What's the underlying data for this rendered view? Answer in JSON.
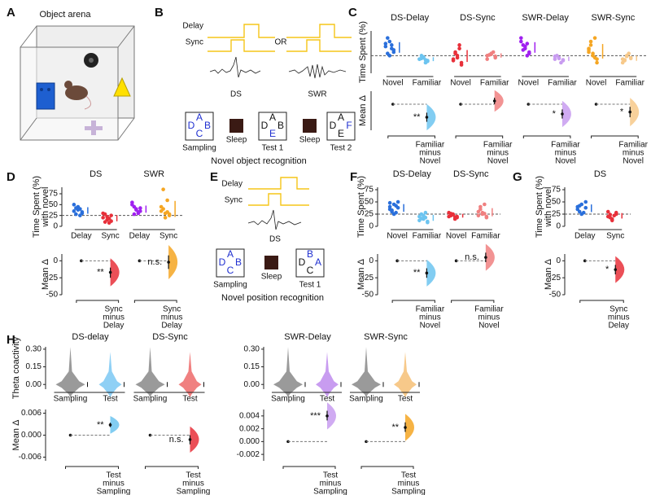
{
  "figure": {
    "panel_labels": [
      "A",
      "B",
      "C",
      "D",
      "E",
      "F",
      "G",
      "H"
    ],
    "a_title": "Object arena",
    "b": {
      "delay": "Delay",
      "sync": "Sync",
      "or": "OR",
      "ds": "DS",
      "swr": "SWR",
      "sleep": "Sleep",
      "caption": "Novel object recognition",
      "boxes": [
        {
          "label": "Sampling",
          "letters": [
            {
              "text": "A",
              "color": "#1f2fd0"
            },
            {
              "text": "D",
              "color": "#1f2fd0"
            },
            {
              "text": "B",
              "color": "#1f2fd0"
            },
            {
              "text": "C",
              "color": "#1f2fd0"
            }
          ]
        },
        {
          "label": "Test 1",
          "letters": [
            {
              "text": "A",
              "color": "#111111"
            },
            {
              "text": "D",
              "color": "#111111"
            },
            {
              "text": "B",
              "color": "#111111"
            },
            {
              "text": "E",
              "color": "#1f2fd0"
            }
          ]
        },
        {
          "label": "Test 2",
          "letters": [
            {
              "text": "A",
              "color": "#111111"
            },
            {
              "text": "D",
              "color": "#111111"
            },
            {
              "text": "F",
              "color": "#1f2fd0"
            },
            {
              "text": "E",
              "color": "#111111"
            }
          ]
        }
      ]
    },
    "e": {
      "delay": "Delay",
      "sync": "Sync",
      "ds": "DS",
      "sleep": "Sleep",
      "caption": "Novel position recognition",
      "boxes": [
        {
          "label": "Sampling",
          "letters": [
            {
              "text": "A",
              "color": "#1f2fd0"
            },
            {
              "text": "D",
              "color": "#1f2fd0"
            },
            {
              "text": "B",
              "color": "#1f2fd0"
            },
            {
              "text": "C",
              "color": "#1f2fd0"
            }
          ]
        },
        {
          "label": "Test 1",
          "letters": [
            {
              "text": "B",
              "color": "#1f2fd0"
            },
            {
              "text": "D",
              "color": "#111111"
            },
            {
              "text": "A",
              "color": "#1f2fd0"
            },
            {
              "text": "C",
              "color": "#111111"
            }
          ]
        }
      ]
    }
  },
  "chart_data": [
    {
      "type": "strip",
      "ylabel": [
        "Time Spent (%)"
      ],
      "ylim": [
        0,
        60
      ],
      "reference": 25,
      "groups": [
        {
          "title": "DS-Delay",
          "categories": [
            "Novel",
            "Familiar"
          ],
          "series": [
            {
              "color": "#2a6fdb",
              "values": [
                38,
                45,
                30,
                28,
                35,
                42,
                25,
                33,
                50,
                40
              ]
            },
            {
              "color": "#6cc4f0",
              "values": [
                20,
                22,
                18,
                25,
                15,
                20,
                23,
                17,
                21,
                19
              ]
            }
          ]
        },
        {
          "title": "DS-Sync",
          "categories": [
            "Novel",
            "Familiar"
          ],
          "series": [
            {
              "color": "#e8303a",
              "values": [
                20,
                25,
                15,
                30,
                35,
                18,
                22,
                12,
                28,
                40
              ]
            },
            {
              "color": "#f08080",
              "values": [
                25,
                28,
                22,
                26,
                30,
                20,
                27,
                24
              ]
            }
          ]
        },
        {
          "title": "SWR-Delay",
          "categories": [
            "Novel",
            "Familiar"
          ],
          "series": [
            {
              "color": "#a020f0",
              "values": [
                45,
                35,
                30,
                40,
                25,
                50,
                38,
                28,
                33,
                42
              ]
            },
            {
              "color": "#c89cf0",
              "values": [
                20,
                22,
                18,
                25,
                15,
                24,
                21,
                19
              ]
            }
          ]
        },
        {
          "title": "SWR-Sync",
          "categories": [
            "Novel",
            "Familiar"
          ],
          "series": [
            {
              "color": "#f5a623",
              "values": [
                30,
                25,
                20,
                45,
                50,
                35,
                28,
                15,
                40,
                22,
                33
              ]
            },
            {
              "color": "#f7c98a",
              "values": [
                20,
                25,
                22,
                18,
                28,
                15,
                24,
                21,
                19
              ]
            }
          ]
        }
      ]
    },
    {
      "type": "estimation",
      "ylabel": [
        "Mean Δ"
      ],
      "ylim": [
        -40,
        20
      ],
      "groups": [
        {
          "labels": [
            "Familiar",
            "minus",
            "Novel"
          ],
          "color": "#6cc4f0",
          "value": -20,
          "ci": [
            -27,
            -13
          ],
          "significance": "**"
        },
        {
          "labels": [
            "Familiar",
            "minus",
            "Novel"
          ],
          "color": "#f08080",
          "value": 5,
          "ci": [
            0,
            10
          ]
        },
        {
          "labels": [
            "Familiar",
            "minus",
            "Novel"
          ],
          "color": "#c89cf0",
          "value": -15,
          "ci": [
            -22,
            -8
          ],
          "significance": "*"
        },
        {
          "labels": [
            "Familiar",
            "minus",
            "Novel"
          ],
          "color": "#f7c98a",
          "value": -12,
          "ci": [
            -20,
            -4
          ],
          "significance": "*"
        }
      ]
    },
    {
      "type": "strip",
      "ylabel": [
        "Time Spent (%)",
        "with novel"
      ],
      "ylim": [
        0,
        90
      ],
      "yticks": [
        0,
        25,
        50,
        75
      ],
      "reference": 25,
      "groups": [
        {
          "title": "DS",
          "categories": [
            "Delay",
            "Sync"
          ],
          "series": [
            {
              "color": "#2a6fdb",
              "values": [
                35,
                45,
                30,
                28,
                40,
                50,
                38,
                33,
                42,
                25
              ]
            },
            {
              "color": "#e8303a",
              "values": [
                20,
                15,
                25,
                10,
                18,
                30,
                22,
                12,
                28,
                8
              ]
            }
          ]
        },
        {
          "title": "SWR",
          "categories": [
            "Delay",
            "Sync"
          ],
          "series": [
            {
              "color": "#a020f0",
              "values": [
                50,
                40,
                35,
                45,
                30,
                55,
                38,
                42,
                28,
                33
              ]
            },
            {
              "color": "#f5a623",
              "values": [
                45,
                30,
                25,
                40,
                60,
                35,
                20,
                28,
                85,
                33
              ]
            }
          ]
        }
      ]
    },
    {
      "type": "estimation",
      "ylabel": [
        "Mean Δ"
      ],
      "ylim": [
        -50,
        10
      ],
      "yticks": [
        0,
        -25,
        -50
      ],
      "groups": [
        {
          "labels": [
            "Sync",
            "minus",
            "Delay"
          ],
          "color": "#e8303a",
          "value": -17,
          "ci": [
            -25,
            -10
          ],
          "significance": "**"
        },
        {
          "labels": [
            "Sync",
            "minus",
            "Delay"
          ],
          "color": "#f5a623",
          "value": -2,
          "ci": [
            -12,
            8
          ],
          "significance": "n.s."
        }
      ]
    },
    {
      "type": "strip",
      "ylabel": [
        "Time Spent (%)"
      ],
      "ylim": [
        0,
        80
      ],
      "yticks": [
        0,
        25,
        50,
        75
      ],
      "reference": 25,
      "groups": [
        {
          "title": "DS-Delay",
          "categories": [
            "Novel",
            "Familiar"
          ],
          "series": [
            {
              "color": "#2a6fdb",
              "values": [
                35,
                45,
                50,
                30,
                28,
                40,
                25,
                38,
                33,
                42,
                48
              ]
            },
            {
              "color": "#6cc4f0",
              "values": [
                20,
                15,
                10,
                25,
                18,
                12,
                22,
                8,
                16,
                28
              ]
            }
          ]
        },
        {
          "title": "DS-Sync",
          "categories": [
            "Novel",
            "Familiar"
          ],
          "series": [
            {
              "color": "#e8303a",
              "values": [
                20,
                25,
                18,
                22,
                15,
                28,
                24,
                20,
                26,
                19
              ]
            },
            {
              "color": "#f08080",
              "values": [
                30,
                25,
                20,
                35,
                45,
                22,
                28,
                18,
                40,
                26
              ]
            }
          ]
        }
      ]
    },
    {
      "type": "estimation",
      "ylabel": [
        "Mean Δ"
      ],
      "ylim": [
        -50,
        10
      ],
      "yticks": [
        0,
        -25,
        -50
      ],
      "groups": [
        {
          "labels": [
            "Familiar",
            "minus",
            "Novel"
          ],
          "color": "#6cc4f0",
          "value": -18,
          "ci": [
            -25,
            -11
          ],
          "significance": "**"
        },
        {
          "labels": [
            "Familiar",
            "minus",
            "Novel"
          ],
          "color": "#f08080",
          "value": 5,
          "ci": [
            -2,
            12
          ],
          "significance": "n.s."
        }
      ]
    },
    {
      "type": "strip",
      "ylabel": [
        "Time Spent (%)",
        "with novel"
      ],
      "ylim": [
        0,
        80
      ],
      "yticks": [
        0,
        25,
        50,
        75
      ],
      "reference": 25,
      "groups": [
        {
          "title": "DS",
          "categories": [
            "Delay",
            "Sync"
          ],
          "series": [
            {
              "color": "#2a6fdb",
              "values": [
                35,
                45,
                50,
                30,
                28,
                40,
                25,
                38,
                42
              ]
            },
            {
              "color": "#e8303a",
              "values": [
                20,
                15,
                25,
                18,
                22,
                30,
                12,
                28,
                24
              ]
            }
          ]
        }
      ]
    },
    {
      "type": "estimation",
      "ylabel": [
        "Mean Δ"
      ],
      "ylim": [
        -50,
        10
      ],
      "yticks": [
        0,
        -25,
        -50
      ],
      "groups": [
        {
          "labels": [
            "Sync",
            "minus",
            "Delay"
          ],
          "color": "#e8303a",
          "value": -13,
          "ci": [
            -20,
            -6
          ],
          "significance": "*"
        }
      ]
    },
    {
      "type": "violin",
      "ylabel": [
        "Theta coactivity"
      ],
      "ylim": [
        -0.04,
        0.32
      ],
      "yticks": [
        {
          "value": 0.3,
          "label": "0.30"
        },
        {
          "value": 0.15,
          "label": "0.15"
        },
        {
          "value": 0,
          "label": "0.00"
        }
      ],
      "groups": [
        {
          "title": "DS-delay",
          "categories": [
            "Sampling",
            "Test"
          ],
          "series": [
            {
              "color": "#9a9a9a",
              "values": [
                0
              ]
            },
            {
              "color": "#8fd0f5",
              "values": [
                0
              ]
            }
          ]
        },
        {
          "title": "DS-Sync",
          "categories": [
            "Sampling",
            "Test"
          ],
          "series": [
            {
              "color": "#9a9a9a",
              "values": [
                0
              ]
            },
            {
              "color": "#f08080",
              "values": [
                0
              ]
            }
          ]
        }
      ]
    },
    {
      "type": "estimation",
      "ylabel": [
        "Mean Δ"
      ],
      "ylim": [
        -0.007,
        0.007
      ],
      "yticks": [
        0.006,
        {
          "value": 0,
          "label": "0.000"
        },
        -0.006
      ],
      "groups": [
        {
          "labels": [
            "Test",
            "minus",
            "Sampling"
          ],
          "color": "#6cc4f0",
          "value": 0.0028,
          "ci": [
            0.0022,
            0.0034
          ],
          "significance": "**"
        },
        {
          "labels": [
            "Test",
            "minus",
            "Sampling"
          ],
          "color": "#e8303a",
          "value": -0.0012,
          "ci": [
            -0.0025,
            0
          ],
          "significance": "n.s."
        }
      ]
    },
    {
      "type": "violin",
      "ylabel": [],
      "ylim": [
        -0.04,
        0.32
      ],
      "yticks": [
        {
          "value": 0.3,
          "label": "0.30"
        },
        {
          "value": 0.15,
          "label": "0.15"
        },
        {
          "value": 0,
          "label": "0.00"
        }
      ],
      "groups": [
        {
          "title": "SWR-Delay",
          "categories": [
            "Sampling",
            "Test"
          ],
          "series": [
            {
              "color": "#9a9a9a",
              "values": [
                0
              ]
            },
            {
              "color": "#c89cf0",
              "values": [
                0
              ]
            }
          ]
        },
        {
          "title": "SWR-Sync",
          "categories": [
            "Sampling",
            "Test"
          ],
          "series": [
            {
              "color": "#9a9a9a",
              "values": [
                0
              ]
            },
            {
              "color": "#f7c98a",
              "values": [
                0
              ]
            }
          ]
        }
      ]
    },
    {
      "type": "estimation",
      "ylabel": [],
      "ylim": [
        -0.003,
        0.005
      ],
      "yticks": [
        0.004,
        0.002,
        {
          "value": 0,
          "label": "0.000"
        },
        -0.002
      ],
      "groups": [
        {
          "labels": [
            "Test",
            "minus",
            "Sampling"
          ],
          "color": "#c89cf0",
          "value": 0.004,
          "ci": [
            0.0033,
            0.0048
          ],
          "significance": "***"
        },
        {
          "labels": [
            "Test",
            "minus",
            "Sampling"
          ],
          "color": "#f5a623",
          "value": 0.0022,
          "ci": [
            0.0015,
            0.003
          ],
          "significance": "**"
        }
      ]
    }
  ]
}
